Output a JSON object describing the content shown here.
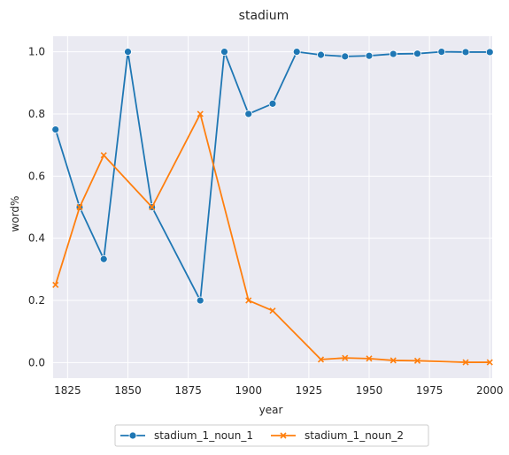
{
  "chart_data": {
    "type": "line",
    "title": "stadium",
    "xlabel": "year",
    "ylabel": "word%",
    "xlim": [
      1819,
      2001
    ],
    "ylim": [
      -0.05,
      1.05
    ],
    "x_ticks": [
      1825,
      1850,
      1875,
      1900,
      1925,
      1950,
      1975,
      2000
    ],
    "x_tick_labels": [
      "1825",
      "1850",
      "1875",
      "1900",
      "1925",
      "1950",
      "1975",
      "2000"
    ],
    "y_ticks": [
      0.0,
      0.2,
      0.4,
      0.6,
      0.8,
      1.0
    ],
    "y_tick_labels": [
      "0.0",
      "0.2",
      "0.4",
      "0.6",
      "0.8",
      "1.0"
    ],
    "grid": true,
    "legend_placement": "bottom-center",
    "series": [
      {
        "name": "stadium_1_noun_1",
        "color": "#1f77b4",
        "marker": "circle",
        "x": [
          1820,
          1830,
          1840,
          1850,
          1860,
          1880,
          1890,
          1900,
          1910,
          1920,
          1930,
          1940,
          1950,
          1960,
          1970,
          1980,
          1990,
          2000
        ],
        "y": [
          0.75,
          0.5,
          0.333,
          1.0,
          0.5,
          0.2,
          1.0,
          0.8,
          0.833,
          1.0,
          0.99,
          0.985,
          0.987,
          0.993,
          0.994,
          1.0,
          0.999,
          0.999
        ]
      },
      {
        "name": "stadium_1_noun_2",
        "color": "#ff7f0e",
        "marker": "x",
        "x": [
          1820,
          1830,
          1840,
          1860,
          1880,
          1900,
          1910,
          1930,
          1940,
          1950,
          1960,
          1970,
          1990,
          2000
        ],
        "y": [
          0.25,
          0.5,
          0.667,
          0.5,
          0.8,
          0.2,
          0.167,
          0.01,
          0.015,
          0.013,
          0.007,
          0.006,
          0.001,
          0.001
        ]
      }
    ]
  }
}
